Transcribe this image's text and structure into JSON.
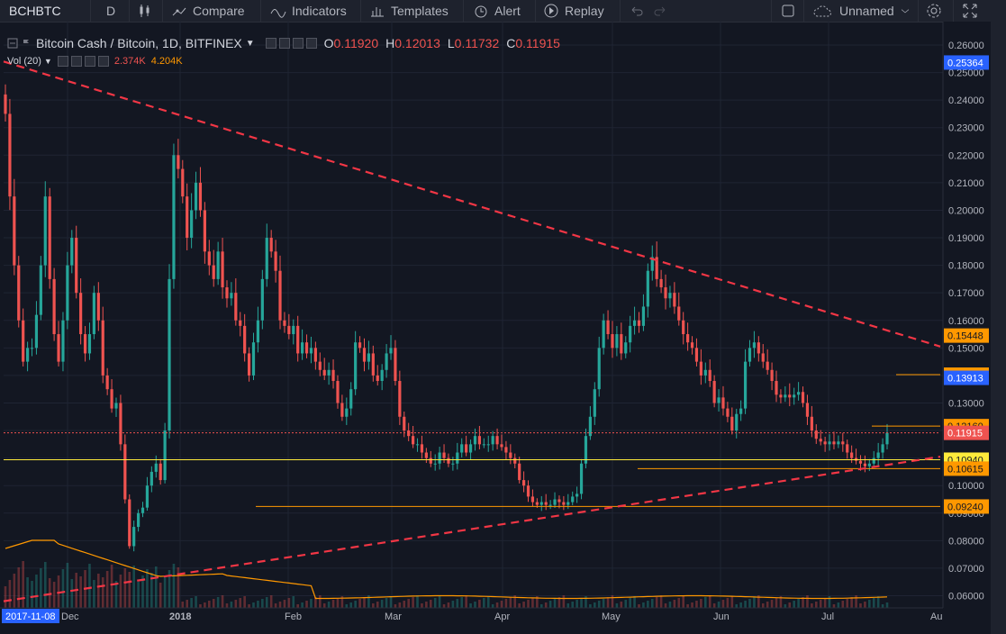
{
  "toolbar": {
    "symbol": "BCHBTC",
    "interval": "D",
    "compare_label": "Compare",
    "indicators_label": "Indicators",
    "templates_label": "Templates",
    "alert_label": "Alert",
    "replay_label": "Replay",
    "layout_name": "Unnamed"
  },
  "legend": {
    "title": "Bitcoin Cash / Bitcoin, 1D, BITFINEX",
    "o_label": "O",
    "o_value": "0.11920",
    "h_label": "H",
    "h_value": "0.12013",
    "l_label": "L",
    "l_value": "0.11732",
    "c_label": "C",
    "c_value": "0.11915",
    "vol_label": "Vol (20)",
    "vol_value1": "2.374K",
    "vol_value2": "4.204K"
  },
  "colors": {
    "background": "#131722",
    "up": "#26a69a",
    "down": "#ef5350",
    "trendline": "#f23645",
    "support": "#ff9800",
    "current_price": "#ef5350"
  },
  "price_axis": {
    "ticks": [
      "0.26000",
      "0.25000",
      "0.24000",
      "0.23000",
      "0.22000",
      "0.21000",
      "0.20000",
      "0.19000",
      "0.18000",
      "0.17000",
      "0.16000",
      "0.15000",
      "0.14000",
      "0.13000",
      "0.12000",
      "0.11000",
      "0.10000",
      "0.09000",
      "0.08000",
      "0.07000",
      "0.06000"
    ],
    "tick_values": [
      0.26,
      0.25,
      0.24,
      0.23,
      0.22,
      0.21,
      0.2,
      0.19,
      0.18,
      0.17,
      0.16,
      0.15,
      0.14,
      0.13,
      0.12,
      0.11,
      0.1,
      0.09,
      0.08,
      0.07,
      0.06
    ],
    "badges": [
      {
        "text": "0.25364",
        "value": 0.25364,
        "bg": "#2962ff",
        "fg": "#ffffff"
      },
      {
        "text": "0.15448",
        "value": 0.15448,
        "bg": "#ff9800",
        "fg": "#131722"
      },
      {
        "text": "0.14028",
        "value": 0.14028,
        "bg": "#ff9800",
        "fg": "#131722"
      },
      {
        "text": "0.13913",
        "value": 0.13913,
        "bg": "#2962ff",
        "fg": "#ffffff"
      },
      {
        "text": "0.12160",
        "value": 0.1216,
        "bg": "#ff9800",
        "fg": "#131722"
      },
      {
        "text": "0.11915",
        "value": 0.11915,
        "bg": "#ef5350",
        "fg": "#ffffff"
      },
      {
        "text": "0.10940",
        "value": 0.1094,
        "bg": "#ffeb3b",
        "fg": "#131722"
      },
      {
        "text": "0.10615",
        "value": 0.10615,
        "bg": "#ff9800",
        "fg": "#131722"
      },
      {
        "text": "0.09240",
        "value": 0.0924,
        "bg": "#ff9800",
        "fg": "#131722"
      }
    ]
  },
  "time_axis": {
    "labels": [
      "2017-11-08",
      "Dec",
      "2018",
      "Feb",
      "Mar",
      "Apr",
      "May",
      "Jun",
      "Jul",
      "Au"
    ]
  },
  "chart_data": {
    "type": "candlestick",
    "series": "BCH/BTC daily, approximated from the figure",
    "closes_start_date": "2017-11-08",
    "closes": [
      0.235,
      0.205,
      0.18,
      0.16,
      0.145,
      0.15,
      0.15,
      0.162,
      0.18,
      0.205,
      0.175,
      0.155,
      0.145,
      0.16,
      0.18,
      0.19,
      0.17,
      0.155,
      0.148,
      0.155,
      0.17,
      0.16,
      0.14,
      0.135,
      0.128,
      0.13,
      0.115,
      0.095,
      0.078,
      0.085,
      0.09,
      0.092,
      0.1,
      0.105,
      0.108,
      0.102,
      0.12,
      0.175,
      0.22,
      0.215,
      0.205,
      0.19,
      0.2,
      0.21,
      0.2,
      0.185,
      0.18,
      0.175,
      0.185,
      0.172,
      0.168,
      0.17,
      0.16,
      0.158,
      0.148,
      0.14,
      0.152,
      0.16,
      0.175,
      0.19,
      0.185,
      0.178,
      0.16,
      0.158,
      0.155,
      0.158,
      0.148,
      0.152,
      0.148,
      0.15,
      0.145,
      0.142,
      0.14,
      0.142,
      0.138,
      0.13,
      0.125,
      0.128,
      0.135,
      0.152,
      0.15,
      0.145,
      0.148,
      0.14,
      0.138,
      0.142,
      0.148,
      0.15,
      0.138,
      0.125,
      0.12,
      0.118,
      0.115,
      0.115,
      0.112,
      0.11,
      0.108,
      0.108,
      0.112,
      0.11,
      0.108,
      0.108,
      0.112,
      0.115,
      0.112,
      0.115,
      0.118,
      0.115,
      0.115,
      0.115,
      0.118,
      0.115,
      0.114,
      0.112,
      0.11,
      0.108,
      0.102,
      0.1,
      0.096,
      0.094,
      0.093,
      0.094,
      0.093,
      0.093,
      0.095,
      0.094,
      0.093,
      0.094,
      0.096,
      0.097,
      0.108,
      0.118,
      0.125,
      0.135,
      0.15,
      0.16,
      0.155,
      0.15,
      0.155,
      0.148,
      0.152,
      0.158,
      0.16,
      0.158,
      0.165,
      0.178,
      0.183,
      0.175,
      0.172,
      0.168,
      0.17,
      0.165,
      0.16,
      0.155,
      0.152,
      0.15,
      0.145,
      0.14,
      0.142,
      0.138,
      0.13,
      0.132,
      0.128,
      0.125,
      0.12,
      0.126,
      0.128,
      0.145,
      0.15,
      0.152,
      0.148,
      0.145,
      0.142,
      0.138,
      0.133,
      0.132,
      0.133,
      0.132,
      0.133,
      0.134,
      0.13,
      0.125,
      0.12,
      0.117,
      0.116,
      0.115,
      0.116,
      0.115,
      0.116,
      0.115,
      0.112,
      0.11,
      0.109,
      0.108,
      0.107,
      0.108,
      0.11,
      0.112,
      0.115,
      0.11915
    ],
    "annotations": {
      "resistance_trendline": {
        "from": [
          0,
          0.254
        ],
        "to": [
          340,
          0.15
        ]
      },
      "support_trendline": {
        "from": [
          0,
          0.058
        ],
        "to": [
          340,
          0.1105
        ]
      },
      "horizontal_levels": [
        0.1216,
        0.11915,
        0.1094,
        0.10615,
        0.0924,
        0.14028
      ]
    },
    "ylim": [
      0.055,
      0.265
    ]
  }
}
